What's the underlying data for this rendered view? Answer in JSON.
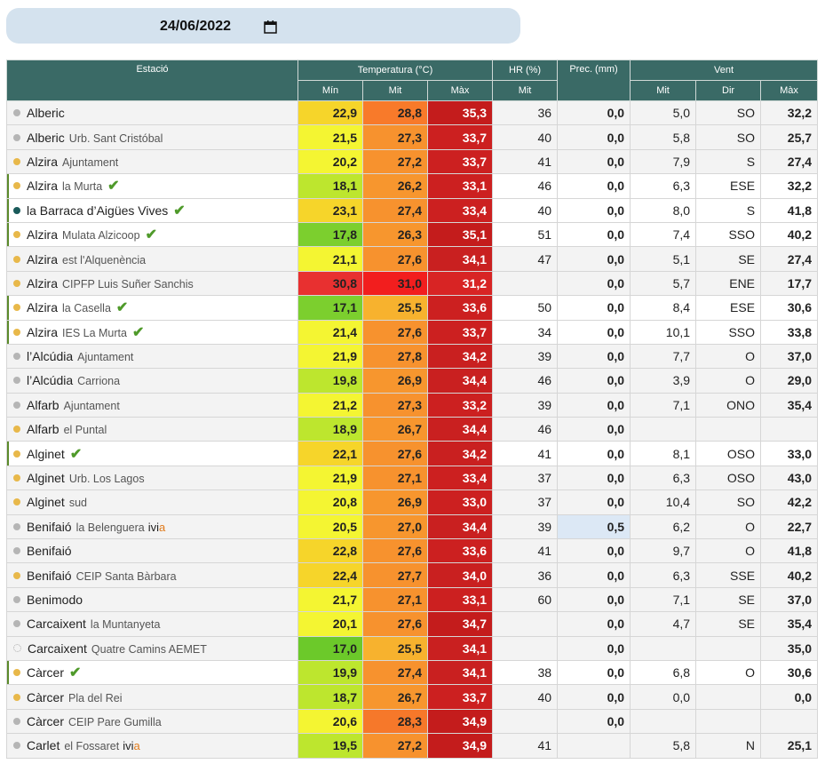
{
  "date_picker": {
    "value": "24/06/2022",
    "icon": "calendar-icon"
  },
  "colors": {
    "header_bg": "#3a6a66",
    "date_bar_bg": "#d4e2ee",
    "check": "#4f9a2a",
    "dot_orange": "#e8b84a",
    "dot_gray": "#b5b5b5",
    "dot_teal": "#1a5a5a"
  },
  "headers": {
    "station": "Estació",
    "temperature": "Temperatura (°C)",
    "hr": "HR (%)",
    "prec": "Prec. (mm)",
    "wind": "Vent",
    "t_min": "Mín",
    "t_mit": "Mit",
    "t_max": "Màx",
    "hr_mit": "Mit",
    "w_mit": "Mit",
    "w_dir": "Dir",
    "w_max": "Màx"
  },
  "rows": [
    {
      "name": "Alberic",
      "sub": "",
      "dot": "gray",
      "check": false,
      "ivia": false,
      "hl": false,
      "tmin": "22,9",
      "tmit": "28,8",
      "tmax": "35,3",
      "hr": "36",
      "prec": "0,0",
      "wmit": "5,0",
      "wdir": "SO",
      "wmax": "32,2",
      "cmin": "#f6d52a",
      "cmit": "#f87a2a",
      "cmax": "#c41c1c"
    },
    {
      "name": "Alberic",
      "sub": "Urb. Sant Cristóbal",
      "dot": "gray",
      "check": false,
      "ivia": false,
      "hl": false,
      "tmin": "21,5",
      "tmit": "27,3",
      "tmax": "33,7",
      "hr": "40",
      "prec": "0,0",
      "wmit": "5,8",
      "wdir": "SO",
      "wmax": "25,7",
      "cmin": "#f4f532",
      "cmit": "#f7922e",
      "cmax": "#cc2020"
    },
    {
      "name": "Alzira",
      "sub": "Ajuntament",
      "dot": "orange",
      "check": false,
      "ivia": false,
      "hl": false,
      "tmin": "20,2",
      "tmit": "27,2",
      "tmax": "33,7",
      "hr": "41",
      "prec": "0,0",
      "wmit": "7,9",
      "wdir": "S",
      "wmax": "27,4",
      "cmin": "#f4f532",
      "cmit": "#f7922e",
      "cmax": "#cc2020"
    },
    {
      "name": "Alzira",
      "sub": "la Murta",
      "dot": "orange",
      "check": true,
      "ivia": false,
      "hl": true,
      "tmin": "18,1",
      "tmit": "26,2",
      "tmax": "33,1",
      "hr": "46",
      "prec": "0,0",
      "wmit": "6,3",
      "wdir": "ESE",
      "wmax": "32,2",
      "cmin": "#bde62e",
      "cmit": "#f7962e",
      "cmax": "#cc2020"
    },
    {
      "name": "la Barraca d’Aigües Vives",
      "sub": "",
      "dot": "teal",
      "check": true,
      "ivia": false,
      "hl": true,
      "tmin": "23,1",
      "tmit": "27,4",
      "tmax": "33,4",
      "hr": "40",
      "prec": "0,0",
      "wmit": "8,0",
      "wdir": "S",
      "wmax": "41,8",
      "cmin": "#f6d52a",
      "cmit": "#f7922e",
      "cmax": "#cc2020"
    },
    {
      "name": "Alzira",
      "sub": "Mulata Alzicoop",
      "dot": "orange",
      "check": true,
      "ivia": false,
      "hl": true,
      "tmin": "17,8",
      "tmit": "26,3",
      "tmax": "35,1",
      "hr": "51",
      "prec": "0,0",
      "wmit": "7,4",
      "wdir": "SSO",
      "wmax": "40,2",
      "cmin": "#7ccf2e",
      "cmit": "#f7962e",
      "cmax": "#c41c1c"
    },
    {
      "name": "Alzira",
      "sub": "est l'Alquenència",
      "dot": "orange",
      "check": false,
      "ivia": false,
      "hl": false,
      "tmin": "21,1",
      "tmit": "27,6",
      "tmax": "34,1",
      "hr": "47",
      "prec": "0,0",
      "wmit": "5,1",
      "wdir": "SE",
      "wmax": "27,4",
      "cmin": "#f4f532",
      "cmit": "#f7922e",
      "cmax": "#c92020"
    },
    {
      "name": "Alzira",
      "sub": "CIPFP Luis Suñer Sanchis",
      "dot": "orange",
      "check": false,
      "ivia": false,
      "hl": false,
      "tmin": "30,8",
      "tmit": "31,0",
      "tmax": "31,2",
      "hr": "",
      "prec": "0,0",
      "wmit": "5,7",
      "wdir": "ENE",
      "wmax": "17,7",
      "cmin": "#e83030",
      "cmit": "#f21e1e",
      "cmax": "#d82424"
    },
    {
      "name": "Alzira",
      "sub": "la Casella",
      "dot": "orange",
      "check": true,
      "ivia": false,
      "hl": true,
      "tmin": "17,1",
      "tmit": "25,5",
      "tmax": "33,6",
      "hr": "50",
      "prec": "0,0",
      "wmit": "8,4",
      "wdir": "ESE",
      "wmax": "30,6",
      "cmin": "#7ccf2e",
      "cmit": "#f7b22e",
      "cmax": "#cc2020"
    },
    {
      "name": "Alzira",
      "sub": "IES La Murta",
      "dot": "orange",
      "check": true,
      "ivia": false,
      "hl": true,
      "tmin": "21,4",
      "tmit": "27,6",
      "tmax": "33,7",
      "hr": "34",
      "prec": "0,0",
      "wmit": "10,1",
      "wdir": "SSO",
      "wmax": "33,8",
      "cmin": "#f4f532",
      "cmit": "#f7922e",
      "cmax": "#cc2020"
    },
    {
      "name": "l’Alcúdia",
      "sub": "Ajuntament",
      "dot": "gray",
      "check": false,
      "ivia": false,
      "hl": false,
      "tmin": "21,9",
      "tmit": "27,8",
      "tmax": "34,2",
      "hr": "39",
      "prec": "0,0",
      "wmit": "7,7",
      "wdir": "O",
      "wmax": "37,0",
      "cmin": "#f4f532",
      "cmit": "#f7922e",
      "cmax": "#c92020"
    },
    {
      "name": "l’Alcúdia",
      "sub": "Carriona",
      "dot": "gray",
      "check": false,
      "ivia": false,
      "hl": false,
      "tmin": "19,8",
      "tmit": "26,9",
      "tmax": "34,4",
      "hr": "46",
      "prec": "0,0",
      "wmit": "3,9",
      "wdir": "O",
      "wmax": "29,0",
      "cmin": "#bde62e",
      "cmit": "#f7962e",
      "cmax": "#c92020"
    },
    {
      "name": "Alfarb",
      "sub": "Ajuntament",
      "dot": "gray",
      "check": false,
      "ivia": false,
      "hl": false,
      "tmin": "21,2",
      "tmit": "27,3",
      "tmax": "33,2",
      "hr": "39",
      "prec": "0,0",
      "wmit": "7,1",
      "wdir": "ONO",
      "wmax": "35,4",
      "cmin": "#f4f532",
      "cmit": "#f7922e",
      "cmax": "#cc2020"
    },
    {
      "name": "Alfarb",
      "sub": "el Puntal",
      "dot": "orange",
      "check": false,
      "ivia": false,
      "hl": false,
      "tmin": "18,9",
      "tmit": "26,7",
      "tmax": "34,4",
      "hr": "46",
      "prec": "0,0",
      "wmit": "",
      "wdir": "",
      "wmax": "",
      "cmin": "#bde62e",
      "cmit": "#f7962e",
      "cmax": "#c92020"
    },
    {
      "name": "Alginet",
      "sub": "",
      "dot": "orange",
      "check": true,
      "ivia": false,
      "hl": true,
      "tmin": "22,1",
      "tmit": "27,6",
      "tmax": "34,2",
      "hr": "41",
      "prec": "0,0",
      "wmit": "8,1",
      "wdir": "OSO",
      "wmax": "33,0",
      "cmin": "#f6d52a",
      "cmit": "#f7922e",
      "cmax": "#c92020"
    },
    {
      "name": "Alginet",
      "sub": "Urb. Los Lagos",
      "dot": "orange",
      "check": false,
      "ivia": false,
      "hl": false,
      "tmin": "21,9",
      "tmit": "27,1",
      "tmax": "33,4",
      "hr": "37",
      "prec": "0,0",
      "wmit": "6,3",
      "wdir": "OSO",
      "wmax": "43,0",
      "cmin": "#f4f532",
      "cmit": "#f7922e",
      "cmax": "#cc2020"
    },
    {
      "name": "Alginet",
      "sub": "sud",
      "dot": "orange",
      "check": false,
      "ivia": false,
      "hl": false,
      "tmin": "20,8",
      "tmit": "26,9",
      "tmax": "33,0",
      "hr": "37",
      "prec": "0,0",
      "wmit": "10,4",
      "wdir": "SO",
      "wmax": "42,2",
      "cmin": "#f4f532",
      "cmit": "#f7962e",
      "cmax": "#cc2020"
    },
    {
      "name": "Benifaió",
      "sub": "la Belenguera",
      "dot": "gray",
      "check": false,
      "ivia": true,
      "hl": false,
      "tmin": "20,5",
      "tmit": "27,0",
      "tmax": "34,4",
      "hr": "39",
      "prec": "0,5",
      "wmit": "6,2",
      "wdir": "O",
      "wmax": "22,7",
      "cmin": "#f4f532",
      "cmit": "#f7962e",
      "cmax": "#c92020"
    },
    {
      "name": "Benifaió",
      "sub": "",
      "dot": "gray",
      "check": false,
      "ivia": false,
      "hl": false,
      "tmin": "22,8",
      "tmit": "27,6",
      "tmax": "33,6",
      "hr": "41",
      "prec": "0,0",
      "wmit": "9,7",
      "wdir": "O",
      "wmax": "41,8",
      "cmin": "#f6d52a",
      "cmit": "#f7922e",
      "cmax": "#cc2020"
    },
    {
      "name": "Benifaió",
      "sub": "CEIP Santa Bàrbara",
      "dot": "orange",
      "check": false,
      "ivia": false,
      "hl": false,
      "tmin": "22,4",
      "tmit": "27,7",
      "tmax": "34,0",
      "hr": "36",
      "prec": "0,0",
      "wmit": "6,3",
      "wdir": "SSE",
      "wmax": "40,2",
      "cmin": "#f6d52a",
      "cmit": "#f7922e",
      "cmax": "#c92020"
    },
    {
      "name": "Benimodo",
      "sub": "",
      "dot": "gray",
      "check": false,
      "ivia": false,
      "hl": false,
      "tmin": "21,7",
      "tmit": "27,1",
      "tmax": "33,1",
      "hr": "60",
      "prec": "0,0",
      "wmit": "7,1",
      "wdir": "SE",
      "wmax": "37,0",
      "cmin": "#f4f532",
      "cmit": "#f7922e",
      "cmax": "#cc2020"
    },
    {
      "name": "Carcaixent",
      "sub": "la Muntanyeta",
      "dot": "gray",
      "check": false,
      "ivia": false,
      "hl": false,
      "tmin": "20,1",
      "tmit": "27,6",
      "tmax": "34,7",
      "hr": "",
      "prec": "0,0",
      "wmit": "4,7",
      "wdir": "SE",
      "wmax": "35,4",
      "cmin": "#f4f532",
      "cmit": "#f7922e",
      "cmax": "#c41c1c"
    },
    {
      "name": "Carcaixent",
      "sub": "Quatre Camins AEMET",
      "dot": "empty",
      "check": false,
      "ivia": false,
      "hl": false,
      "tmin": "17,0",
      "tmit": "25,5",
      "tmax": "34,1",
      "hr": "",
      "prec": "0,0",
      "wmit": "",
      "wdir": "",
      "wmax": "35,0",
      "cmin": "#6cc92a",
      "cmit": "#f7b22e",
      "cmax": "#c92020"
    },
    {
      "name": "Càrcer",
      "sub": "",
      "dot": "orange",
      "check": true,
      "ivia": false,
      "hl": true,
      "tmin": "19,9",
      "tmit": "27,4",
      "tmax": "34,1",
      "hr": "38",
      "prec": "0,0",
      "wmit": "6,8",
      "wdir": "O",
      "wmax": "30,6",
      "cmin": "#bde62e",
      "cmit": "#f7922e",
      "cmax": "#c92020"
    },
    {
      "name": "Càrcer",
      "sub": "Pla del Rei",
      "dot": "orange",
      "check": false,
      "ivia": false,
      "hl": false,
      "tmin": "18,7",
      "tmit": "26,7",
      "tmax": "33,7",
      "hr": "40",
      "prec": "0,0",
      "wmit": "0,0",
      "wdir": "",
      "wmax": "0,0",
      "cmin": "#bde62e",
      "cmit": "#f7962e",
      "cmax": "#cc2020"
    },
    {
      "name": "Càrcer",
      "sub": "CEIP Pare Gumilla",
      "dot": "gray",
      "check": false,
      "ivia": false,
      "hl": false,
      "tmin": "20,6",
      "tmit": "28,3",
      "tmax": "34,9",
      "hr": "",
      "prec": "0,0",
      "wmit": "",
      "wdir": "",
      "wmax": "",
      "cmin": "#f4f532",
      "cmit": "#f6782a",
      "cmax": "#c41c1c"
    },
    {
      "name": "Carlet",
      "sub": "el Fossaret",
      "dot": "gray",
      "check": false,
      "ivia": true,
      "hl": false,
      "tmin": "19,5",
      "tmit": "27,2",
      "tmax": "34,9",
      "hr": "41",
      "prec": "",
      "wmit": "5,8",
      "wdir": "N",
      "wmax": "25,1",
      "cmin": "#bde62e",
      "cmit": "#f7922e",
      "cmax": "#c41c1c"
    }
  ],
  "ivia_label": {
    "a": "ivi",
    "b": "a"
  }
}
